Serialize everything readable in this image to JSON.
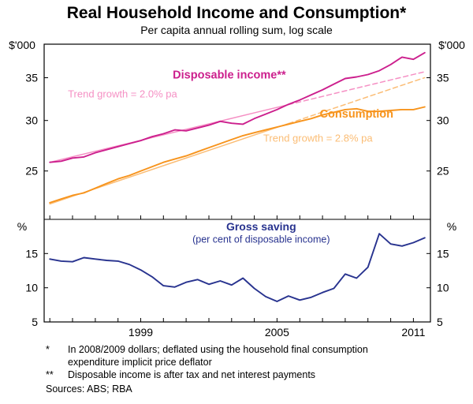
{
  "chart_data": [
    {
      "type": "line",
      "panel": "top",
      "title": "Real Household Income and Consumption*",
      "subtitle": "Per capita annual rolling sum, log scale",
      "yscale": "log",
      "ylim": [
        21,
        39.5
      ],
      "yticks": [
        25,
        30,
        35
      ],
      "ylabel_left": "$'000",
      "ylabel_right": "$'000",
      "grid": false,
      "x": [
        1995,
        1995.5,
        1996,
        1996.5,
        1997,
        1997.5,
        1998,
        1998.5,
        1999,
        1999.5,
        2000,
        2000.5,
        2001,
        2001.5,
        2002,
        2002.5,
        2003,
        2003.5,
        2004,
        2004.5,
        2005,
        2005.5,
        2006,
        2006.5,
        2007,
        2007.5,
        2008,
        2008.5,
        2009,
        2009.5,
        2010,
        2010.5,
        2011,
        2011.5
      ],
      "series": [
        {
          "name": "Disposable income trend",
          "color": "#f590c4",
          "width": 1.5,
          "trend": {
            "base_x": 1995,
            "base_value": 25.8,
            "growth_pct_pa": 2.0,
            "dashed_from": 2005.5,
            "end_x": 2011.5
          }
        },
        {
          "name": "Consumption trend",
          "color": "#fbbd75",
          "width": 1.5,
          "trend": {
            "base_x": 1995,
            "base_value": 22.2,
            "growth_pct_pa": 2.8,
            "dashed_from": 2005.5,
            "end_x": 2011.5
          }
        },
        {
          "name": "Consumption",
          "color": "#f7941d",
          "width": 1.9,
          "values": [
            22.3,
            22.6,
            22.9,
            23.1,
            23.5,
            23.9,
            24.3,
            24.6,
            25.0,
            25.4,
            25.8,
            26.1,
            26.4,
            26.8,
            27.2,
            27.6,
            28.0,
            28.4,
            28.7,
            29.0,
            29.3,
            29.6,
            29.9,
            30.2,
            30.6,
            30.9,
            31.2,
            31.3,
            31.0,
            31.0,
            31.1,
            31.2,
            31.2,
            31.5
          ]
        },
        {
          "name": "Disposable income",
          "color": "#cc1f8d",
          "width": 1.9,
          "values": [
            25.8,
            25.9,
            26.2,
            26.3,
            26.7,
            27.0,
            27.3,
            27.6,
            27.9,
            28.3,
            28.6,
            29.0,
            28.9,
            29.2,
            29.5,
            29.9,
            29.7,
            29.6,
            30.2,
            30.7,
            31.2,
            31.8,
            32.3,
            32.9,
            33.5,
            34.2,
            34.9,
            35.1,
            35.4,
            35.9,
            36.7,
            37.7,
            37.4,
            38.3
          ]
        }
      ],
      "annotations": [
        {
          "text": "Disposable income**",
          "x": 2002.9,
          "y": 34.9,
          "color": "#cc1f8d",
          "bold": true,
          "size": 14.5
        },
        {
          "text": "Trend growth = 2.0% pa",
          "x": 1998.2,
          "y": 32.6,
          "color": "#f590c4",
          "bold": false,
          "size": 13
        },
        {
          "text": "Consumption",
          "x": 2008.5,
          "y": 30.3,
          "color": "#f7941d",
          "bold": true,
          "size": 14.5
        },
        {
          "text": "Trend growth = 2.8% pa",
          "x": 2006.8,
          "y": 27.8,
          "color": "#fbbd75",
          "bold": false,
          "size": 13
        }
      ]
    },
    {
      "type": "line",
      "panel": "bottom",
      "yscale": "linear",
      "ylim": [
        5,
        20
      ],
      "yticks": [
        5,
        10,
        15
      ],
      "ylabel_left": "%",
      "ylabel_right": "%",
      "grid": false,
      "x": [
        1995,
        1995.5,
        1996,
        1996.5,
        1997,
        1997.5,
        1998,
        1998.5,
        1999,
        1999.5,
        2000,
        2000.5,
        2001,
        2001.5,
        2002,
        2002.5,
        2003,
        2003.5,
        2004,
        2004.5,
        2005,
        2005.5,
        2006,
        2006.5,
        2007,
        2007.5,
        2008,
        2008.5,
        2009,
        2009.5,
        2010,
        2010.5,
        2011,
        2011.5
      ],
      "series": [
        {
          "name": "Gross saving",
          "color": "#28338f",
          "width": 1.9,
          "values": [
            14.2,
            13.9,
            13.8,
            14.4,
            14.2,
            14.0,
            13.9,
            13.4,
            12.6,
            11.6,
            10.3,
            10.1,
            10.8,
            11.2,
            10.5,
            11.0,
            10.4,
            11.4,
            9.9,
            8.7,
            8.0,
            8.8,
            8.2,
            8.6,
            9.3,
            9.9,
            12.0,
            11.4,
            13.0,
            17.9,
            16.4,
            16.1,
            16.6,
            17.3
          ]
        }
      ],
      "annotations": [
        {
          "text": "Gross saving",
          "x": 2004.3,
          "y": 18.4,
          "color": "#28338f",
          "bold": true,
          "size": 14
        },
        {
          "text": "(per cent of disposable income)",
          "x": 2004.3,
          "y": 16.6,
          "color": "#28338f",
          "bold": false,
          "size": 12.5
        }
      ]
    }
  ],
  "xaxis": {
    "xlim": [
      1994.75,
      2011.75
    ],
    "tick_every_years": 1,
    "labeled_ticks": [
      1999,
      2005,
      2011
    ]
  },
  "footnotes": [
    {
      "marker": "*",
      "text": "In 2008/2009 dollars; deflated using the household final consumption expenditure implicit price deflator"
    },
    {
      "marker": "**",
      "text": "Disposable income is after tax and net interest payments"
    }
  ],
  "sources": "Sources: ABS; RBA"
}
